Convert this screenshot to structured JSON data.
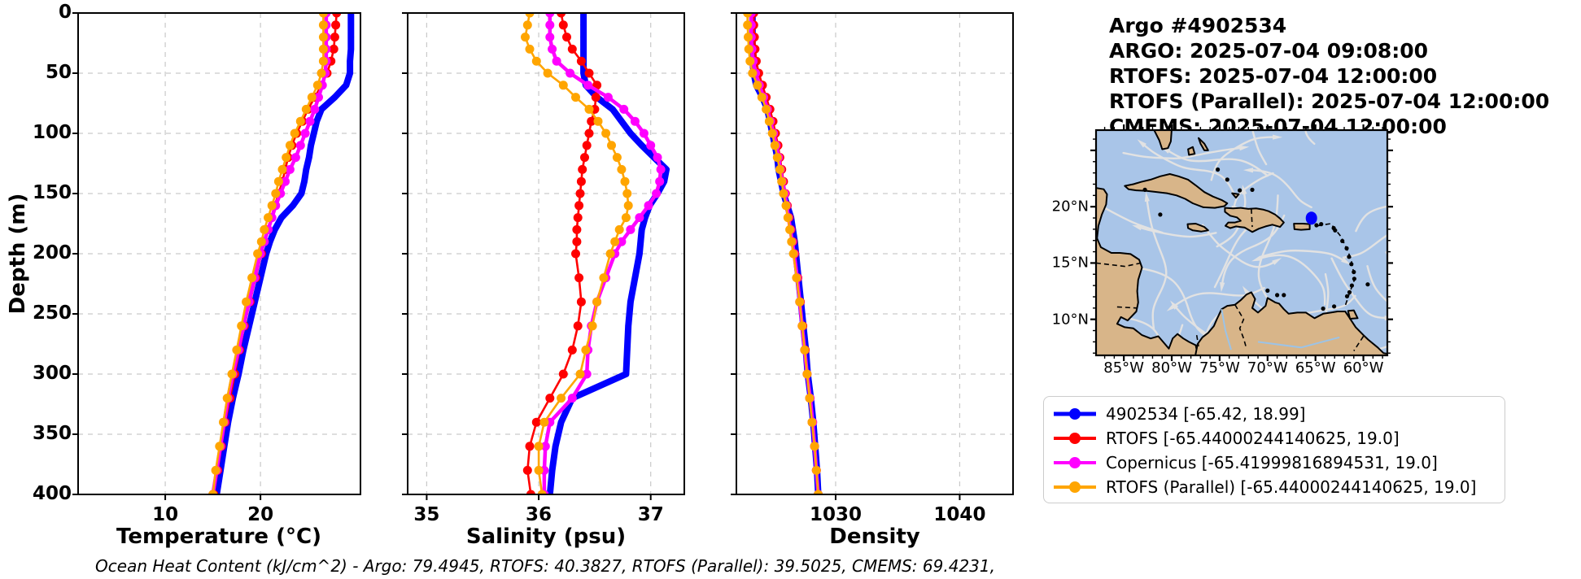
{
  "header": {
    "title_lines": [
      "Argo #4902534",
      "ARGO:  2025-07-04 09:08:00",
      "RTOFS: 2025-07-04 12:00:00",
      "RTOFS (Parallel): 2025-07-04 12:00:00",
      "CMEMS: 2025-07-04 12:00:00"
    ]
  },
  "axes": {
    "depth_label": "Depth (m)",
    "depth_ticks": [
      0,
      50,
      100,
      150,
      200,
      250,
      300,
      350,
      400
    ]
  },
  "chart_data": [
    {
      "type": "line",
      "xlabel": "Temperature (°C)",
      "ylabel": "Depth (m)",
      "xlim": [
        0.85,
        30.5
      ],
      "ylim": [
        400,
        0
      ],
      "xticks": [
        10,
        20
      ],
      "yticks": [
        0,
        50,
        100,
        150,
        200,
        250,
        300,
        350,
        400
      ],
      "grid": true,
      "depths_m": [
        0,
        10,
        20,
        30,
        40,
        50,
        60,
        70,
        80,
        90,
        100,
        110,
        120,
        130,
        140,
        150,
        160,
        170,
        180,
        190,
        200,
        220,
        240,
        260,
        280,
        300,
        320,
        340,
        360,
        380,
        400
      ],
      "series": [
        {
          "name": "4902534",
          "color": "#0000ff",
          "values": [
            29.5,
            29.5,
            29.5,
            29.5,
            29.4,
            29.4,
            29.0,
            27.8,
            26.4,
            25.9,
            25.6,
            25.3,
            25.1,
            24.8,
            24.6,
            24.3,
            23.4,
            22.2,
            21.5,
            21.0,
            20.6,
            20.0,
            19.4,
            18.8,
            18.2,
            17.7,
            17.1,
            16.6,
            16.2,
            15.8,
            15.4
          ]
        },
        {
          "name": "RTOFS",
          "color": "#ff0000",
          "values": [
            28.0,
            27.9,
            27.8,
            27.7,
            27.4,
            27.0,
            26.4,
            25.7,
            25.0,
            24.4,
            23.8,
            23.3,
            22.9,
            22.6,
            22.3,
            21.9,
            21.5,
            21.1,
            20.8,
            20.4,
            20.1,
            19.5,
            18.9,
            18.3,
            17.8,
            17.3,
            16.8,
            16.3,
            15.9,
            15.5,
            15.1
          ]
        },
        {
          "name": "Copernicus",
          "color": "#ff00ff",
          "values": [
            26.9,
            26.9,
            26.9,
            26.9,
            26.9,
            26.8,
            26.5,
            26.1,
            25.7,
            25.2,
            24.7,
            24.2,
            23.7,
            23.1,
            22.6,
            22.1,
            21.6,
            21.2,
            20.8,
            20.4,
            20.0,
            19.4,
            18.8,
            18.2,
            17.7,
            17.1,
            16.6,
            16.2,
            15.8,
            15.4,
            15.0
          ]
        },
        {
          "name": "RTOFS (Parallel)",
          "color": "#ffa500",
          "values": [
            26.6,
            26.6,
            26.6,
            26.6,
            26.6,
            26.4,
            26.0,
            25.4,
            24.8,
            24.2,
            23.6,
            23.1,
            22.7,
            22.3,
            21.9,
            21.6,
            21.2,
            20.8,
            20.4,
            20.1,
            19.7,
            19.1,
            18.5,
            18.0,
            17.5,
            17.0,
            16.5,
            16.1,
            15.7,
            15.3,
            15.0
          ]
        }
      ]
    },
    {
      "type": "line",
      "xlabel": "Salinity (psu)",
      "ylabel": "",
      "xlim": [
        34.83,
        37.3
      ],
      "ylim": [
        400,
        0
      ],
      "xticks": [
        35,
        36,
        37
      ],
      "yticks": [
        0,
        50,
        100,
        150,
        200,
        250,
        300,
        350,
        400
      ],
      "grid": true,
      "depths_m": [
        0,
        10,
        20,
        30,
        40,
        50,
        60,
        70,
        80,
        90,
        100,
        110,
        120,
        130,
        140,
        150,
        160,
        170,
        180,
        190,
        200,
        220,
        240,
        260,
        280,
        300,
        320,
        340,
        360,
        380,
        400
      ],
      "series": [
        {
          "name": "4902534",
          "color": "#0000ff",
          "values": [
            36.4,
            36.4,
            36.4,
            36.4,
            36.4,
            36.4,
            36.42,
            36.52,
            36.66,
            36.74,
            36.82,
            36.92,
            37.03,
            37.14,
            37.12,
            37.06,
            36.99,
            36.95,
            36.92,
            36.91,
            36.9,
            36.86,
            36.82,
            36.8,
            36.79,
            36.78,
            36.3,
            36.2,
            36.15,
            36.12,
            36.1
          ]
        },
        {
          "name": "RTOFS",
          "color": "#ff0000",
          "values": [
            36.2,
            36.22,
            36.25,
            36.3,
            36.38,
            36.45,
            36.52,
            36.51,
            36.5,
            36.47,
            36.45,
            36.43,
            36.41,
            36.39,
            36.38,
            36.37,
            36.36,
            36.35,
            36.34,
            36.34,
            36.33,
            36.36,
            36.38,
            36.35,
            36.3,
            36.22,
            36.1,
            35.98,
            35.92,
            35.9,
            35.93
          ]
        },
        {
          "name": "Copernicus",
          "color": "#ff00ff",
          "values": [
            36.1,
            36.1,
            36.1,
            36.12,
            36.16,
            36.28,
            36.44,
            36.62,
            36.76,
            36.86,
            36.94,
            37.0,
            37.06,
            37.09,
            37.08,
            37.05,
            36.98,
            36.9,
            36.82,
            36.74,
            36.68,
            36.6,
            36.52,
            36.47,
            36.44,
            36.43,
            36.3,
            36.1,
            36.06,
            36.05,
            36.05
          ]
        },
        {
          "name": "RTOFS (Parallel)",
          "color": "#ffa500",
          "values": [
            35.92,
            35.9,
            35.88,
            35.92,
            35.98,
            36.08,
            36.22,
            36.33,
            36.45,
            36.53,
            36.6,
            36.65,
            36.7,
            36.74,
            36.77,
            36.79,
            36.8,
            36.78,
            36.72,
            36.68,
            36.64,
            36.58,
            36.52,
            36.48,
            36.42,
            36.37,
            36.2,
            36.05,
            36.0,
            36.0,
            36.03
          ]
        }
      ]
    },
    {
      "type": "line",
      "xlabel": "Density",
      "ylabel": "",
      "xlim": [
        1022.0,
        1044.3
      ],
      "ylim": [
        400,
        0
      ],
      "xticks": [
        1030,
        1040
      ],
      "yticks": [
        0,
        50,
        100,
        150,
        200,
        250,
        300,
        350,
        400
      ],
      "grid": true,
      "depths_m": [
        0,
        10,
        20,
        30,
        40,
        50,
        60,
        70,
        80,
        90,
        100,
        110,
        120,
        130,
        140,
        150,
        160,
        170,
        180,
        190,
        200,
        220,
        240,
        260,
        280,
        300,
        320,
        340,
        360,
        380,
        400
      ],
      "series": [
        {
          "name": "4902534",
          "color": "#0000ff",
          "values": [
            1023.3,
            1023.3,
            1023.3,
            1023.3,
            1023.3,
            1023.4,
            1023.6,
            1024.1,
            1024.5,
            1024.7,
            1024.9,
            1025.1,
            1025.3,
            1025.4,
            1025.6,
            1025.8,
            1026.1,
            1026.4,
            1026.55,
            1026.7,
            1026.8,
            1027.0,
            1027.2,
            1027.4,
            1027.6,
            1027.75,
            1028.0,
            1028.2,
            1028.35,
            1028.5,
            1028.6
          ]
        },
        {
          "name": "RTOFS",
          "color": "#ff0000",
          "values": [
            1023.4,
            1023.4,
            1023.45,
            1023.5,
            1023.6,
            1023.8,
            1024.1,
            1024.4,
            1024.7,
            1024.95,
            1025.15,
            1025.35,
            1025.5,
            1025.65,
            1025.8,
            1025.95,
            1026.1,
            1026.25,
            1026.4,
            1026.55,
            1026.7,
            1026.95,
            1027.15,
            1027.35,
            1027.55,
            1027.7,
            1027.9,
            1028.1,
            1028.3,
            1028.45,
            1028.6
          ]
        },
        {
          "name": "Copernicus",
          "color": "#ff00ff",
          "values": [
            1023.2,
            1023.2,
            1023.2,
            1023.25,
            1023.35,
            1023.55,
            1023.85,
            1024.2,
            1024.5,
            1024.75,
            1025.0,
            1025.2,
            1025.4,
            1025.55,
            1025.7,
            1025.9,
            1026.05,
            1026.2,
            1026.35,
            1026.5,
            1026.65,
            1026.9,
            1027.1,
            1027.3,
            1027.5,
            1027.7,
            1027.95,
            1028.15,
            1028.3,
            1028.45,
            1028.6
          ]
        },
        {
          "name": "RTOFS (Parallel)",
          "color": "#ffa500",
          "values": [
            1022.9,
            1022.9,
            1022.95,
            1023.0,
            1023.1,
            1023.3,
            1023.7,
            1024.05,
            1024.4,
            1024.65,
            1024.9,
            1025.1,
            1025.3,
            1025.5,
            1025.65,
            1025.8,
            1026.0,
            1026.15,
            1026.3,
            1026.45,
            1026.6,
            1026.85,
            1027.1,
            1027.3,
            1027.5,
            1027.7,
            1027.9,
            1028.1,
            1028.3,
            1028.45,
            1028.6
          ]
        }
      ]
    }
  ],
  "map": {
    "extent": {
      "lon_min": -87.9,
      "lon_max": -57.5,
      "lat_min": 6.8,
      "lat_max": 26.8
    },
    "lat_ticks": [
      {
        "label": "20°N",
        "value": 20
      },
      {
        "label": "15°N",
        "value": 15
      },
      {
        "label": "10°N",
        "value": 10
      }
    ],
    "lon_ticks": [
      {
        "label": "85°W",
        "value": -85
      },
      {
        "label": "80°W",
        "value": -80
      },
      {
        "label": "75°W",
        "value": -75
      },
      {
        "label": "70°W",
        "value": -70
      },
      {
        "label": "65°W",
        "value": -65
      },
      {
        "label": "60°W",
        "value": -60
      }
    ],
    "marker": {
      "lon": -65.42,
      "lat": 18.99,
      "color": "#0000ff"
    },
    "colors": {
      "water": "#a9c5e8",
      "land": "#d8b589",
      "coast": "#000000",
      "streamline": "#e2e2e2",
      "river": "#9cc3e6"
    }
  },
  "legend": {
    "items": [
      {
        "label": "4902534 [-65.42, 18.99]",
        "color": "#0000ff"
      },
      {
        "label": "RTOFS [-65.44000244140625, 19.0]",
        "color": "#ff0000"
      },
      {
        "label": "Copernicus [-65.41999816894531, 19.0]",
        "color": "#ff00ff"
      },
      {
        "label": "RTOFS (Parallel) [-65.44000244140625, 19.0]",
        "color": "#ffa500"
      }
    ]
  },
  "footer": {
    "ohc_line": "Ocean Heat Content (kJ/cm^2) - Argo: 79.4945,  RTOFS: 40.3827,  RTOFS (Parallel): 39.5025,  CMEMS: 69.4231,",
    "ocean_heat_content": {
      "argo": 79.4945,
      "rtofs": 40.3827,
      "rtofs_parallel": 39.5025,
      "cmems": 69.4231
    }
  }
}
